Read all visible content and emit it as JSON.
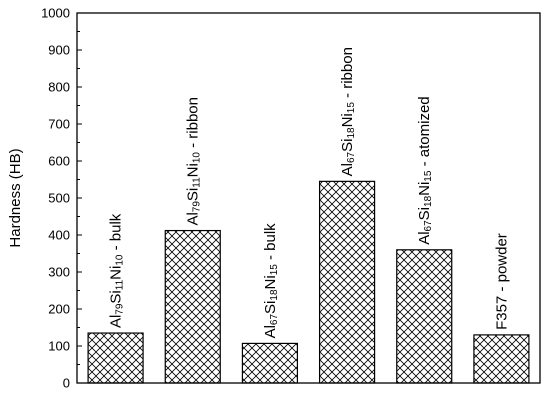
{
  "chart_data": {
    "type": "bar",
    "title": "",
    "xlabel": "",
    "ylabel": "Hardness (HB)",
    "ylim": [
      0,
      1000
    ],
    "yticks": [
      0,
      100,
      200,
      300,
      400,
      500,
      600,
      700,
      800,
      900,
      1000
    ],
    "grid": false,
    "pattern": "crosshatch",
    "bars": [
      {
        "label": "Al79Si11Ni10 - bulk",
        "value": 135,
        "label_parts": [
          {
            "t": "Al",
            "sub": false
          },
          {
            "t": "79",
            "sub": true
          },
          {
            "t": "Si",
            "sub": false
          },
          {
            "t": "11",
            "sub": true
          },
          {
            "t": "Ni",
            "sub": false
          },
          {
            "t": "10",
            "sub": true
          },
          {
            "t": " - bulk",
            "sub": false
          }
        ]
      },
      {
        "label": "Al79Si11Ni10 - ribbon",
        "value": 412,
        "label_parts": [
          {
            "t": "Al",
            "sub": false
          },
          {
            "t": "79",
            "sub": true
          },
          {
            "t": "Si",
            "sub": false
          },
          {
            "t": "11",
            "sub": true
          },
          {
            "t": "Ni",
            "sub": false
          },
          {
            "t": "10",
            "sub": true
          },
          {
            "t": " - ribbon",
            "sub": false
          }
        ]
      },
      {
        "label": "Al67Si18Ni15 - bulk",
        "value": 107,
        "label_parts": [
          {
            "t": "Al",
            "sub": false
          },
          {
            "t": "67",
            "sub": true
          },
          {
            "t": "Si",
            "sub": false
          },
          {
            "t": "18",
            "sub": true
          },
          {
            "t": "Ni",
            "sub": false
          },
          {
            "t": "15",
            "sub": true
          },
          {
            "t": " - bulk",
            "sub": false
          }
        ]
      },
      {
        "label": "Al67Si18Ni15 - ribbon",
        "value": 545,
        "label_parts": [
          {
            "t": "Al",
            "sub": false
          },
          {
            "t": "67",
            "sub": true
          },
          {
            "t": "Si",
            "sub": false
          },
          {
            "t": "18",
            "sub": true
          },
          {
            "t": "Ni",
            "sub": false
          },
          {
            "t": "15",
            "sub": true
          },
          {
            "t": " - ribbon",
            "sub": false
          }
        ]
      },
      {
        "label": "Al67Si18Ni15 - atomized",
        "value": 360,
        "label_parts": [
          {
            "t": "Al",
            "sub": false
          },
          {
            "t": "67",
            "sub": true
          },
          {
            "t": "Si",
            "sub": false
          },
          {
            "t": "18",
            "sub": true
          },
          {
            "t": "Ni",
            "sub": false
          },
          {
            "t": "15",
            "sub": true
          },
          {
            "t": " - atomized",
            "sub": false
          }
        ]
      },
      {
        "label": "F357 - powder",
        "value": 130,
        "label_parts": [
          {
            "t": "F357 - powder",
            "sub": false
          }
        ]
      }
    ]
  }
}
